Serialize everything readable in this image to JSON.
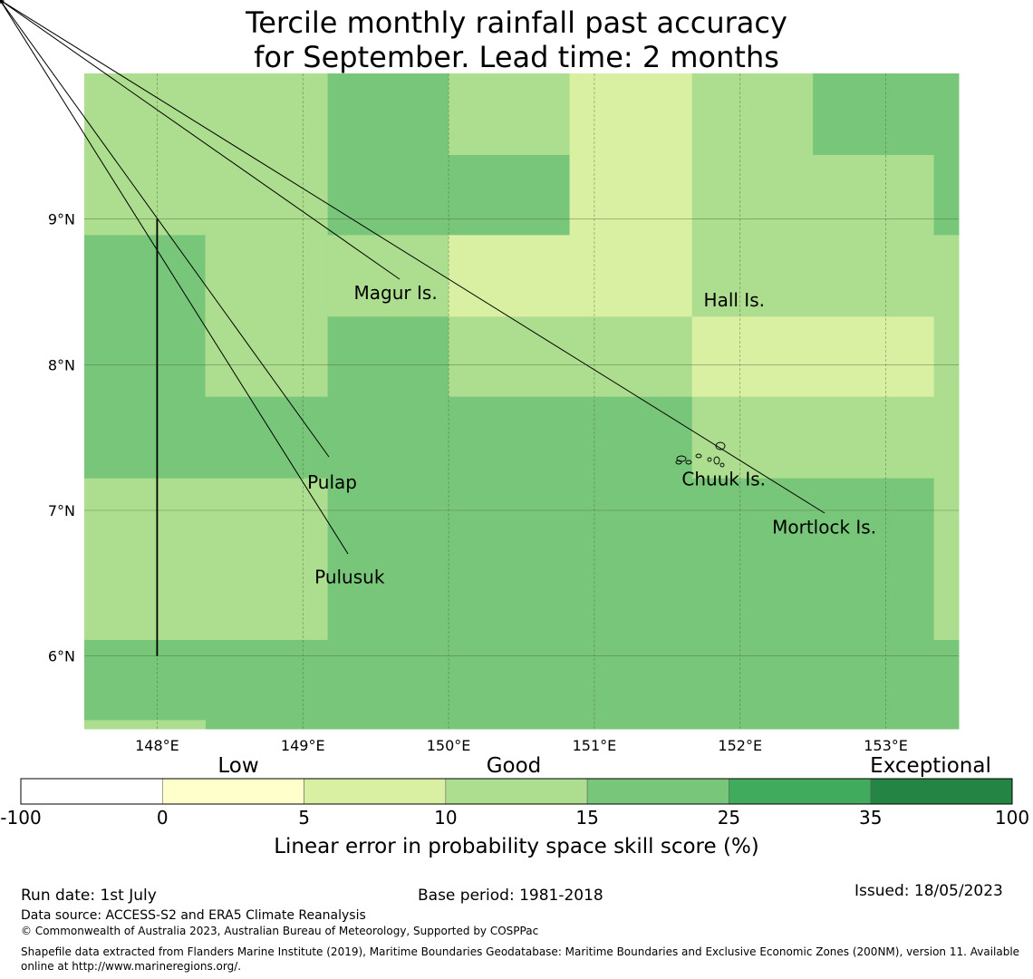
{
  "title_line1": "Tercile monthly rainfall past accuracy",
  "title_line2": "for September. Lead time: 2 months",
  "map": {
    "lon_range": [
      147.5,
      153.5
    ],
    "lat_range": [
      5.5,
      10.0
    ],
    "lon_ticks": [
      {
        "value": 148,
        "label": "148°E"
      },
      {
        "value": 149,
        "label": "149°E"
      },
      {
        "value": 150,
        "label": "150°E"
      },
      {
        "value": 151,
        "label": "151°E"
      },
      {
        "value": 152,
        "label": "152°E"
      },
      {
        "value": 153,
        "label": "153°E"
      }
    ],
    "lat_ticks": [
      {
        "value": 9,
        "label": "9°N"
      },
      {
        "value": 8,
        "label": "8°N"
      },
      {
        "value": 7,
        "label": "7°N"
      },
      {
        "value": 6,
        "label": "6°N"
      }
    ],
    "cells": [
      {
        "lon": [
          147.5,
          149.17
        ],
        "lat": [
          8.89,
          10.0
        ],
        "class": 3
      },
      {
        "lon": [
          149.17,
          150.0
        ],
        "lat": [
          8.89,
          10.0
        ],
        "class": 4
      },
      {
        "lon": [
          150.0,
          150.83
        ],
        "lat": [
          9.44,
          10.0
        ],
        "class": 3
      },
      {
        "lon": [
          150.0,
          150.83
        ],
        "lat": [
          8.89,
          9.44
        ],
        "class": 4
      },
      {
        "lon": [
          150.83,
          151.67
        ],
        "lat": [
          8.89,
          10.0
        ],
        "class": 2
      },
      {
        "lon": [
          151.67,
          152.5
        ],
        "lat": [
          8.89,
          10.0
        ],
        "class": 3
      },
      {
        "lon": [
          152.5,
          153.33
        ],
        "lat": [
          9.44,
          10.0
        ],
        "class": 4
      },
      {
        "lon": [
          152.5,
          153.33
        ],
        "lat": [
          8.89,
          9.44
        ],
        "class": 3
      },
      {
        "lon": [
          153.33,
          153.5
        ],
        "lat": [
          8.89,
          10.0
        ],
        "class": 4
      },
      {
        "lon": [
          147.5,
          148.33
        ],
        "lat": [
          7.78,
          8.89
        ],
        "class": 4
      },
      {
        "lon": [
          148.33,
          149.17
        ],
        "lat": [
          7.78,
          8.89
        ],
        "class": 3
      },
      {
        "lon": [
          149.17,
          150.0
        ],
        "lat": [
          8.33,
          8.89
        ],
        "class": 3
      },
      {
        "lon": [
          149.17,
          150.0
        ],
        "lat": [
          7.78,
          8.33
        ],
        "class": 4
      },
      {
        "lon": [
          150.0,
          151.67
        ],
        "lat": [
          8.33,
          8.89
        ],
        "class": 2
      },
      {
        "lon": [
          150.0,
          151.67
        ],
        "lat": [
          7.78,
          8.33
        ],
        "class": 3
      },
      {
        "lon": [
          151.67,
          153.33
        ],
        "lat": [
          8.33,
          8.89
        ],
        "class": 3
      },
      {
        "lon": [
          151.67,
          153.33
        ],
        "lat": [
          7.78,
          8.33
        ],
        "class": 2
      },
      {
        "lon": [
          153.33,
          153.5
        ],
        "lat": [
          7.78,
          8.89
        ],
        "class": 3
      },
      {
        "lon": [
          147.5,
          148.33
        ],
        "lat": [
          7.22,
          7.78
        ],
        "class": 4
      },
      {
        "lon": [
          148.33,
          149.17
        ],
        "lat": [
          7.22,
          7.78
        ],
        "class": 4
      },
      {
        "lon": [
          149.17,
          151.67
        ],
        "lat": [
          7.22,
          7.78
        ],
        "class": 4
      },
      {
        "lon": [
          151.67,
          153.33
        ],
        "lat": [
          7.22,
          7.78
        ],
        "class": 3
      },
      {
        "lon": [
          153.33,
          153.5
        ],
        "lat": [
          7.22,
          7.78
        ],
        "class": 3
      },
      {
        "lon": [
          147.5,
          149.17
        ],
        "lat": [
          6.11,
          7.22
        ],
        "class": 3
      },
      {
        "lon": [
          149.17,
          153.33
        ],
        "lat": [
          6.11,
          7.22
        ],
        "class": 4
      },
      {
        "lon": [
          153.33,
          153.5
        ],
        "lat": [
          6.11,
          7.22
        ],
        "class": 3
      },
      {
        "lon": [
          147.5,
          153.5
        ],
        "lat": [
          5.5,
          6.11
        ],
        "class": 4
      },
      {
        "lon": [
          147.5,
          148.33
        ],
        "lat": [
          5.5,
          5.56
        ],
        "class": 3
      }
    ],
    "boundary_line": {
      "lon": 148.0,
      "lat": [
        6.0,
        9.0
      ]
    },
    "islands": [
      {
        "name": "Magur Is.",
        "lon": 149.35,
        "lat": 8.5
      },
      {
        "name": "Hall Is.",
        "lon": 151.75,
        "lat": 8.45
      },
      {
        "name": "Pulap",
        "lon": 149.03,
        "lat": 7.2
      },
      {
        "name": "Chuuk Is.",
        "lon": 151.6,
        "lat": 7.22
      },
      {
        "name": "Mortlock Is.",
        "lon": 152.22,
        "lat": 6.89
      },
      {
        "name": "Pulusuk",
        "lon": 149.08,
        "lat": 6.55
      }
    ]
  },
  "colorbar": {
    "bins": [
      {
        "from": "-100",
        "to": "0",
        "color": "#ffffff"
      },
      {
        "from": "0",
        "to": "5",
        "color": "#ffffcc"
      },
      {
        "from": "5",
        "to": "10",
        "color": "#d9f0a3"
      },
      {
        "from": "10",
        "to": "15",
        "color": "#addd8e"
      },
      {
        "from": "15",
        "to": "25",
        "color": "#78c679"
      },
      {
        "from": "25",
        "to": "35",
        "color": "#41ab5d"
      },
      {
        "from": "35",
        "to": "100",
        "color": "#238443"
      }
    ],
    "tick_labels": [
      "-100",
      "0",
      "5",
      "10",
      "15",
      "25",
      "35",
      "100"
    ],
    "category_labels": [
      "Low",
      "Good",
      "Exceptional"
    ],
    "label": "Linear error in probability space skill score (%)"
  },
  "footer": {
    "run_date": "Run date: 1st July",
    "base_period": "Base period: 1981-2018",
    "issued": "Issued: 18/05/2023",
    "data_source": "Data source: ACCESS-S2 and ERA5 Climate Reanalysis",
    "copyright": "© Commonwealth of Australia 2023, Australian Bureau of Meteorology, Supported by COSPPac",
    "shapefile": "Shapefile data extracted from Flanders Marine Institute (2019), Maritime Boundaries Geodatabase: Maritime Boundaries and Exclusive Economic Zones (200NM), version 11. Available online at http://www.marineregions.org/."
  }
}
